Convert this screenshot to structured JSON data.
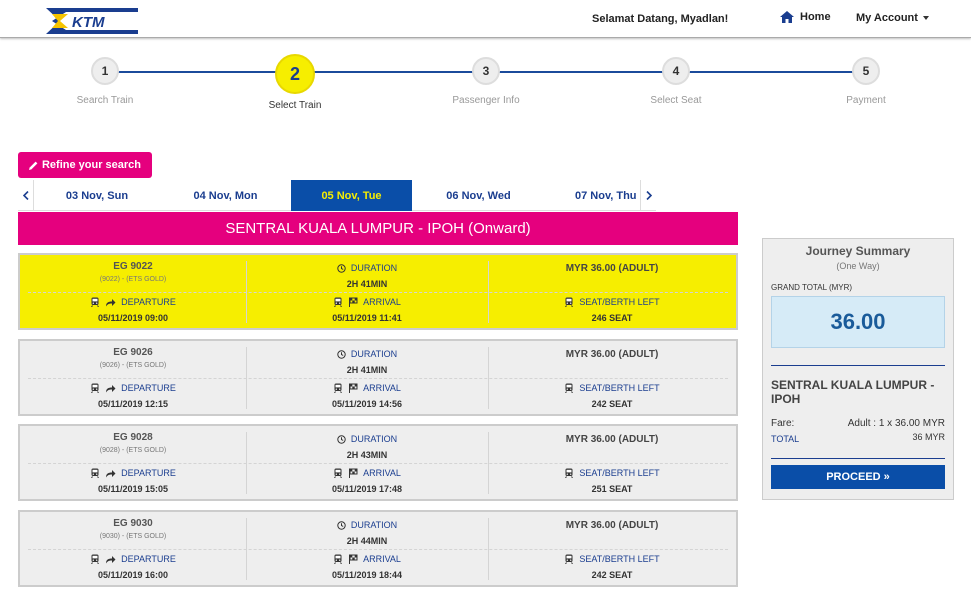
{
  "header": {
    "welcome": "Selamat Datang, Myadlan!",
    "home_label": "Home",
    "account_label": "My Account"
  },
  "steps": [
    {
      "number": "1",
      "label": "Search Train"
    },
    {
      "number": "2",
      "label": "Select Train"
    },
    {
      "number": "3",
      "label": "Passenger Info"
    },
    {
      "number": "4",
      "label": "Select Seat"
    },
    {
      "number": "5",
      "label": "Payment"
    }
  ],
  "refine_label": "Refine your search",
  "dates": [
    {
      "label": "03 Nov, Sun"
    },
    {
      "label": "04 Nov, Mon"
    },
    {
      "label": "05 Nov, Tue"
    },
    {
      "label": "06 Nov, Wed"
    },
    {
      "label": "07 Nov, Thu"
    }
  ],
  "route_title": "SENTRAL KUALA LUMPUR - IPOH (Onward)",
  "labels": {
    "duration": "DURATION",
    "departure": "DEPARTURE",
    "arrival": "ARRIVAL",
    "seat": "SEAT/BERTH LEFT"
  },
  "trains": [
    {
      "name": "EG 9022",
      "sub": "(9022) - (ETS GOLD)",
      "duration": "2H 41MIN",
      "price": "MYR 36.00 (ADULT)",
      "departure": "05/11/2019 09:00",
      "arrival": "05/11/2019 11:41",
      "seats": "246 SEAT"
    },
    {
      "name": "EG 9026",
      "sub": "(9026) - (ETS GOLD)",
      "duration": "2H 41MIN",
      "price": "MYR 36.00 (ADULT)",
      "departure": "05/11/2019 12:15",
      "arrival": "05/11/2019 14:56",
      "seats": "242 SEAT"
    },
    {
      "name": "EG 9028",
      "sub": "(9028) - (ETS GOLD)",
      "duration": "2H 43MIN",
      "price": "MYR 36.00 (ADULT)",
      "departure": "05/11/2019 15:05",
      "arrival": "05/11/2019 17:48",
      "seats": "251 SEAT"
    },
    {
      "name": "EG 9030",
      "sub": "(9030) - (ETS GOLD)",
      "duration": "2H 44MIN",
      "price": "MYR 36.00 (ADULT)",
      "departure": "05/11/2019 16:00",
      "arrival": "05/11/2019 18:44",
      "seats": "242 SEAT"
    }
  ],
  "summary": {
    "title": "Journey Summary",
    "subtitle": "(One Way)",
    "grand_total_label": "GRAND TOTAL (MYR)",
    "grand_total": "36.00",
    "route": "SENTRAL KUALA LUMPUR - IPOH",
    "fare_label": "Fare:",
    "fare_value": "Adult : 1 x 36.00 MYR",
    "total_label": "TOTAL",
    "total_value": "36 MYR",
    "proceed_label": "PROCEED »"
  },
  "colors": {
    "brand_blue": "#0a4ea8",
    "brand_yellow": "#f6ee00",
    "brand_magenta": "#e5007e"
  }
}
